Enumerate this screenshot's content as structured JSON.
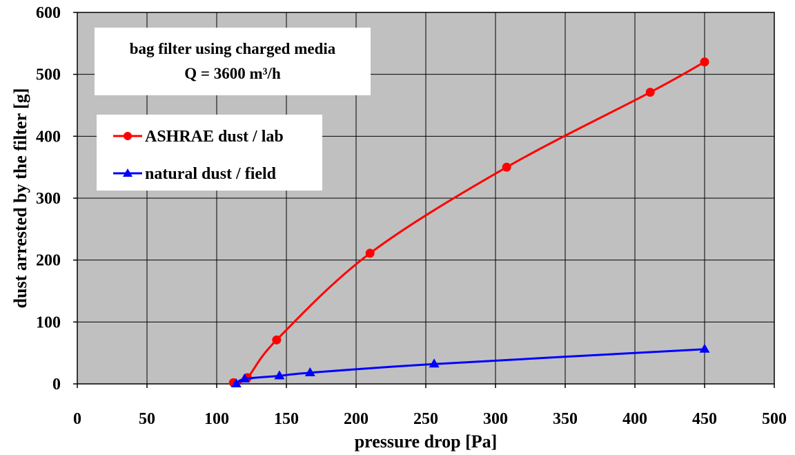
{
  "chart_data": {
    "type": "line",
    "xlabel": "pressure drop [Pa]",
    "ylabel": "dust arrested by the filter [g]",
    "xlim": [
      0,
      500
    ],
    "ylim": [
      0,
      600
    ],
    "xticks": [
      0,
      50,
      100,
      150,
      200,
      250,
      300,
      350,
      400,
      450,
      500
    ],
    "yticks": [
      0,
      100,
      200,
      300,
      400,
      500,
      600
    ],
    "x_tick_labels": [
      "0",
      "50",
      "100",
      "150",
      "200",
      "250",
      "300",
      "350",
      "400",
      "450",
      "500"
    ],
    "y_tick_labels": [
      "0",
      "100",
      "200",
      "300",
      "400",
      "500",
      "600"
    ],
    "grid": true,
    "legend_position": "upper-left",
    "plot_background": "#c0c0c0",
    "annotation": {
      "line1": "bag filter using charged media",
      "line2": "Q = 3600 m³/h"
    },
    "series": [
      {
        "name": "ASHRAE dust / lab",
        "color": "#ff0000",
        "marker": "circle",
        "x": [
          112,
          122,
          143,
          210,
          308,
          411,
          450
        ],
        "y": [
          2,
          10,
          71,
          211,
          350,
          471,
          520
        ]
      },
      {
        "name": "natural dust / field",
        "color": "#0000ff",
        "marker": "triangle",
        "x": [
          114,
          120,
          145,
          167,
          256,
          450
        ],
        "y": [
          0,
          8,
          13,
          18,
          32,
          56
        ]
      }
    ]
  }
}
